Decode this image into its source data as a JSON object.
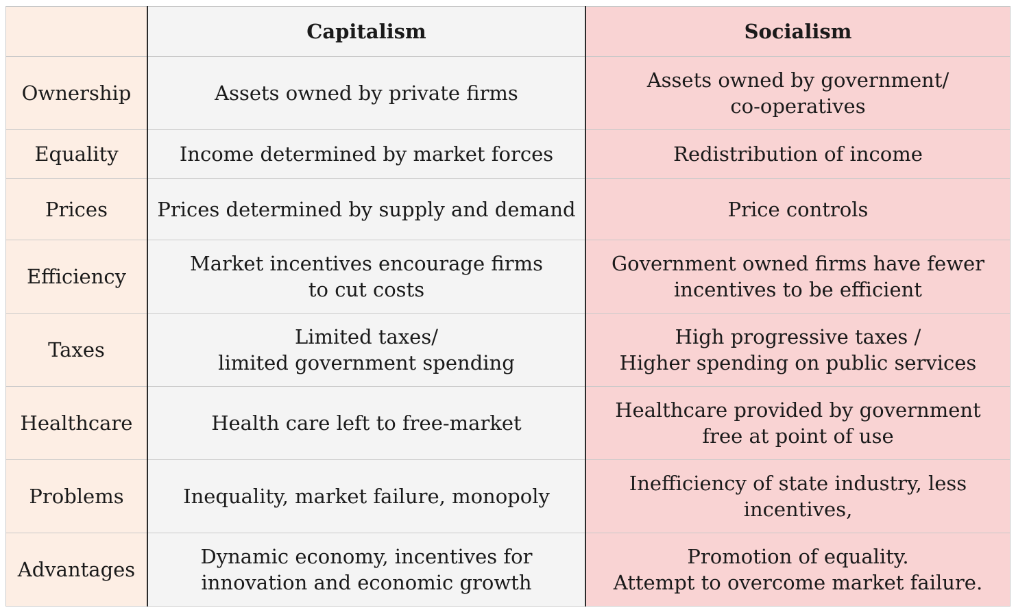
{
  "table": {
    "headers": {
      "corner": "",
      "capitalism": "Capitalism",
      "socialism": "Socialism"
    },
    "rows": [
      {
        "label": "Ownership",
        "capitalism": [
          "Assets owned by private firms"
        ],
        "socialism": [
          "Assets owned by government/",
          "co-operatives"
        ]
      },
      {
        "label": "Equality",
        "capitalism": [
          "Income determined by market forces"
        ],
        "socialism": [
          "Redistribution of income"
        ]
      },
      {
        "label": "Prices",
        "capitalism": [
          "Prices determined by supply and demand"
        ],
        "socialism": [
          "Price controls"
        ]
      },
      {
        "label": "Efficiency",
        "capitalism": [
          "Market incentives encourage firms",
          "to cut costs"
        ],
        "socialism": [
          "Government owned firms have fewer",
          "incentives to be efficient"
        ]
      },
      {
        "label": "Taxes",
        "capitalism": [
          "Limited taxes/",
          "limited government spending"
        ],
        "socialism": [
          "High progressive taxes /",
          "Higher spending on public services"
        ]
      },
      {
        "label": "Healthcare",
        "capitalism": [
          "Health care left to free-market"
        ],
        "socialism": [
          "Healthcare provided by government",
          "free at point of use"
        ]
      },
      {
        "label": "Problems",
        "capitalism": [
          "Inequality, market failure, monopoly"
        ],
        "socialism": [
          "Inefficiency of state industry, less",
          "incentives,"
        ]
      },
      {
        "label": "Advantages",
        "capitalism": [
          "Dynamic economy, incentives for",
          "innovation and economic growth"
        ],
        "socialism": [
          "Promotion of equality.",
          "Attempt to overcome market failure."
        ]
      }
    ]
  },
  "colors": {
    "label_column": "#fdeee4",
    "capitalism_column": "#f4f4f4",
    "socialism_column": "#f9d3d3",
    "grid_lines": "#c9c9c9",
    "divider_lines": "#2b2b2b"
  }
}
